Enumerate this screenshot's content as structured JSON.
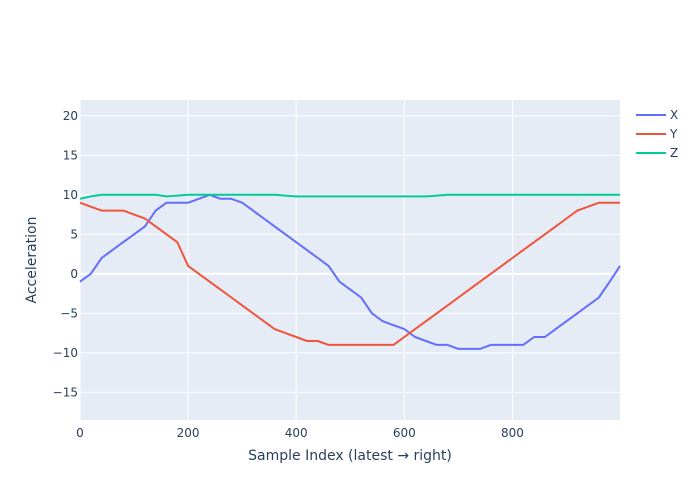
{
  "chart_data": {
    "type": "line",
    "title": "",
    "xlabel": "Sample Index (latest → right)",
    "ylabel": "Acceleration",
    "xlim": [
      0,
      999
    ],
    "ylim": [
      -18.5,
      22
    ],
    "x_ticks": [
      0,
      200,
      400,
      600,
      800
    ],
    "y_ticks": [
      -15,
      -10,
      -5,
      0,
      5,
      10,
      15,
      20
    ],
    "grid": true,
    "legend_position": "top-right",
    "x": [
      0,
      20,
      40,
      60,
      80,
      100,
      120,
      140,
      160,
      180,
      200,
      220,
      240,
      260,
      280,
      300,
      320,
      340,
      360,
      380,
      400,
      420,
      440,
      460,
      480,
      500,
      520,
      540,
      560,
      580,
      600,
      620,
      640,
      660,
      680,
      700,
      720,
      740,
      760,
      780,
      800,
      820,
      840,
      860,
      880,
      900,
      920,
      940,
      960,
      980,
      999
    ],
    "series": [
      {
        "name": "X",
        "color": "#636efa",
        "values": [
          -1,
          0,
          2,
          3,
          4,
          5,
          6,
          8,
          9,
          9,
          9,
          9.5,
          10,
          9.5,
          9.5,
          9,
          8,
          7,
          6,
          5,
          4,
          3,
          2,
          1,
          -1,
          -2,
          -3,
          -5,
          -6,
          -6.5,
          -7,
          -8,
          -8.5,
          -9,
          -9,
          -9.5,
          -9.5,
          -9.5,
          -9,
          -9,
          -9,
          -9,
          -8,
          -8,
          -7,
          -6,
          -5,
          -4,
          -3,
          -1,
          1
        ]
      },
      {
        "name": "Y",
        "color": "#ef553b",
        "values": [
          9,
          8.5,
          8,
          8,
          8,
          7.5,
          7,
          6,
          5,
          4,
          1,
          0,
          -1,
          -2,
          -3,
          -4,
          -5,
          -6,
          -7,
          -7.5,
          -8,
          -8.5,
          -8.5,
          -9,
          -9,
          -9,
          -9,
          -9,
          -9,
          -9,
          -8,
          -7,
          -6,
          -5,
          -4,
          -3,
          -2,
          -1,
          0,
          1,
          2,
          3,
          4,
          5,
          6,
          7,
          8,
          8.5,
          9,
          9,
          9
        ]
      },
      {
        "name": "Z",
        "color": "#00cc96",
        "values": [
          9.5,
          9.8,
          10,
          10,
          10,
          10,
          10,
          10,
          9.8,
          9.9,
          10,
          10,
          10,
          10,
          10,
          10,
          10,
          10,
          10,
          9.9,
          9.8,
          9.8,
          9.8,
          9.8,
          9.8,
          9.8,
          9.8,
          9.8,
          9.8,
          9.8,
          9.8,
          9.8,
          9.8,
          9.9,
          10,
          10,
          10,
          10,
          10,
          10,
          10,
          10,
          10,
          10,
          10,
          10,
          10,
          10,
          10,
          10,
          10
        ]
      }
    ]
  }
}
